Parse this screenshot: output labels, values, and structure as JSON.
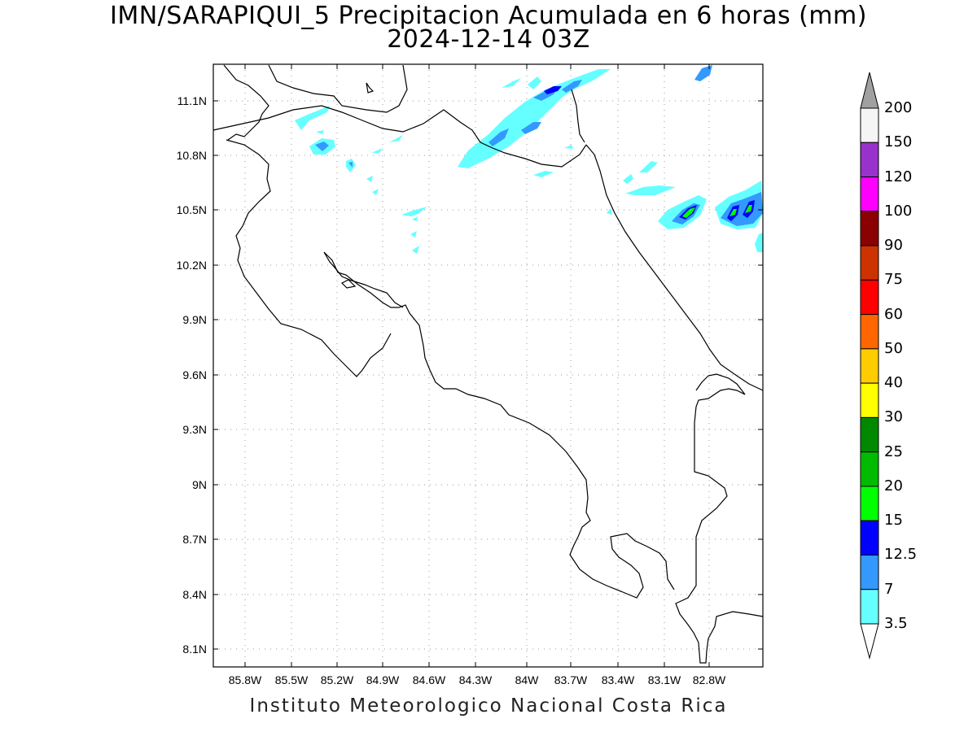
{
  "title": {
    "line1": "IMN/SARAPIQUI_5 Precipitacion Acumulada en 6 horas (mm)",
    "line2": "2024-12-14 03Z"
  },
  "axes": {
    "lat_labels": [
      "11.1N",
      "10.8N",
      "10.5N",
      "10.2N",
      "9.9N",
      "9.6N",
      "9.3N",
      "9N",
      "8.7N",
      "8.4N",
      "8.1N"
    ],
    "lon_labels": [
      "85.8W",
      "85.5W",
      "85.2W",
      "84.9W",
      "84.6W",
      "84.3W",
      "84W",
      "83.7W",
      "83.4W",
      "83.1W",
      "82.8W"
    ],
    "grid": "dotted"
  },
  "colorbar": {
    "labels": [
      "200",
      "150",
      "120",
      "100",
      "90",
      "75",
      "60",
      "50",
      "40",
      "30",
      "25",
      "20",
      "15",
      "12.5",
      "7",
      "3.5"
    ],
    "colors": [
      "#a0a0a0",
      "#f5f5f5",
      "#9932cc",
      "#ff00ff",
      "#8b0000",
      "#cc3300",
      "#ff0000",
      "#ff6600",
      "#ffcc00",
      "#ffff00",
      "#008800",
      "#00bb00",
      "#00ff00",
      "#0000ff",
      "#3399ff",
      "#66ffff"
    ],
    "upper_arrow_color": "#a0a0a0",
    "lower_arrow_color": "#ffffff"
  },
  "legend_colors": {
    "light_cyan": "#66ffff",
    "mid_blue": "#3399ff",
    "blue": "#0000ff",
    "green": "#00ff00"
  },
  "footer": "Instituto Meteorologico Nacional Costa Rica"
}
